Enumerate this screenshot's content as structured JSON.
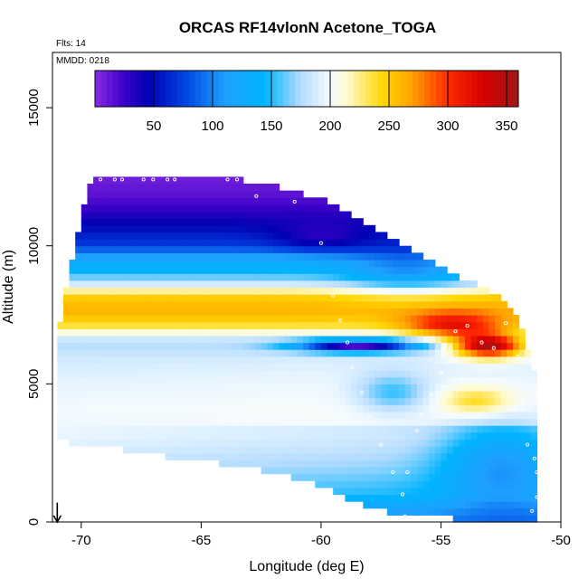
{
  "chart_data": {
    "type": "heatmap",
    "title": "ORCAS RF14vlonN Acetone_TOGA",
    "flights_text": "Flts: 14",
    "mmdd_text": "MMDD: 0218",
    "xlabel": "Longitude (deg E)",
    "ylabel": "Altitude (m)",
    "xlim": [
      -71.2,
      -50
    ],
    "ylim": [
      0,
      17000
    ],
    "xticks": [
      -70,
      -65,
      -60,
      -55,
      -50
    ],
    "yticks": [
      0,
      5000,
      10000,
      15000
    ],
    "colorbar": {
      "range": [
        0,
        360
      ],
      "ticks": [
        50,
        100,
        150,
        200,
        250,
        300,
        350
      ],
      "stops": [
        {
          "v": 0,
          "color": "#8a2be2"
        },
        {
          "v": 25,
          "color": "#3a00c8"
        },
        {
          "v": 45,
          "color": "#0000b4"
        },
        {
          "v": 75,
          "color": "#0040e0"
        },
        {
          "v": 110,
          "color": "#1e9fff"
        },
        {
          "v": 145,
          "color": "#00b4ff"
        },
        {
          "v": 175,
          "color": "#b4dcff"
        },
        {
          "v": 200,
          "color": "#f4fbff"
        },
        {
          "v": 215,
          "color": "#fffacd"
        },
        {
          "v": 245,
          "color": "#ffd700"
        },
        {
          "v": 270,
          "color": "#ffa000"
        },
        {
          "v": 300,
          "color": "#ff2a00"
        },
        {
          "v": 330,
          "color": "#d60000"
        },
        {
          "v": 360,
          "color": "#a01818"
        }
      ]
    },
    "field": {
      "x_step": 0.25,
      "z_step": 250,
      "boundary": [
        {
          "lon": -71.0,
          "zmin": 3000,
          "zmax": 6800
        },
        {
          "lon": -70.0,
          "zmin": 2800,
          "zmax": 11000
        },
        {
          "lon": -69.5,
          "zmin": 2800,
          "zmax": 12500
        },
        {
          "lon": -68.0,
          "zmin": 2600,
          "zmax": 12500
        },
        {
          "lon": -66.0,
          "zmin": 2300,
          "zmax": 12500
        },
        {
          "lon": -64.0,
          "zmin": 2100,
          "zmax": 12500
        },
        {
          "lon": -62.0,
          "zmin": 1800,
          "zmax": 12200
        },
        {
          "lon": -60.0,
          "zmin": 1300,
          "zmax": 11700
        },
        {
          "lon": -58.0,
          "zmin": 500,
          "zmax": 10800
        },
        {
          "lon": -56.0,
          "zmin": 200,
          "zmax": 9700
        },
        {
          "lon": -54.0,
          "zmin": 100,
          "zmax": 8800
        },
        {
          "lon": -52.5,
          "zmin": 100,
          "zmax": 8200
        },
        {
          "lon": -51.7,
          "zmin": 100,
          "zmax": 7200
        },
        {
          "lon": -51.0,
          "zmin": 0,
          "zmax": 5000
        }
      ],
      "layers": [
        {
          "z": 0,
          "v": 110
        },
        {
          "z": 500,
          "v": 130
        },
        {
          "z": 1000,
          "v": 160
        },
        {
          "z": 2000,
          "v": 180
        },
        {
          "z": 3000,
          "v": 195
        },
        {
          "z": 4000,
          "v": 200
        },
        {
          "z": 5000,
          "v": 195
        },
        {
          "z": 6000,
          "v": 185
        },
        {
          "z": 6500,
          "v": 175
        },
        {
          "z": 6700,
          "v": 190
        },
        {
          "z": 7200,
          "v": 245
        },
        {
          "z": 7700,
          "v": 262
        },
        {
          "z": 8200,
          "v": 248
        },
        {
          "z": 8600,
          "v": 190
        },
        {
          "z": 9000,
          "v": 150
        },
        {
          "z": 9500,
          "v": 125
        },
        {
          "z": 10000,
          "v": 75
        },
        {
          "z": 10800,
          "v": 45
        },
        {
          "z": 11300,
          "v": 28
        },
        {
          "z": 11800,
          "v": 15
        },
        {
          "z": 12500,
          "v": 8
        }
      ],
      "features": [
        {
          "lon": -58.5,
          "z": 6400,
          "dv": -160,
          "rx": 2.5,
          "rz": 220
        },
        {
          "lon": -53.0,
          "z": 6400,
          "dv": 170,
          "rx": 1.5,
          "rz": 420
        },
        {
          "lon": -54.5,
          "z": 7100,
          "dv": 80,
          "rx": 2.0,
          "rz": 500
        },
        {
          "lon": -53.5,
          "z": 4400,
          "dv": 45,
          "rx": 1.5,
          "rz": 500
        },
        {
          "lon": -56.5,
          "z": 9000,
          "dv": -40,
          "rx": 2.5,
          "rz": 900
        },
        {
          "lon": -52.5,
          "z": 2200,
          "dv": -60,
          "rx": 2.5,
          "rz": 1600
        },
        {
          "lon": -57.0,
          "z": 4700,
          "dv": -45,
          "rx": 1.5,
          "rz": 700
        },
        {
          "lon": -60.0,
          "z": 10300,
          "dv": -30,
          "rx": 2.0,
          "rz": 500
        }
      ]
    },
    "flight_points": [
      [
        -70.1,
        10900
      ],
      [
        -70.0,
        12400
      ],
      [
        -69.8,
        12400
      ],
      [
        -69.6,
        12400
      ],
      [
        -69.2,
        12400
      ],
      [
        -68.6,
        12400
      ],
      [
        -68.3,
        12400
      ],
      [
        -67.4,
        12400
      ],
      [
        -67.0,
        12400
      ],
      [
        -66.4,
        12400
      ],
      [
        -66.1,
        12400
      ],
      [
        -63.9,
        12400
      ],
      [
        -63.5,
        12400
      ],
      [
        -63.1,
        12400
      ],
      [
        -62.7,
        11800
      ],
      [
        -60.0,
        10100
      ],
      [
        -59.5,
        8200
      ],
      [
        -59.2,
        7300
      ],
      [
        -58.9,
        6500
      ],
      [
        -58.7,
        5600
      ],
      [
        -58.3,
        4700
      ],
      [
        -58.0,
        3800
      ],
      [
        -57.5,
        2800
      ],
      [
        -57.0,
        1800
      ],
      [
        -56.6,
        1000
      ],
      [
        -56.4,
        1800
      ],
      [
        -56.0,
        3300
      ],
      [
        -55.8,
        3900
      ],
      [
        -55.4,
        4600
      ],
      [
        -55.0,
        5400
      ],
      [
        -54.6,
        6300
      ],
      [
        -54.4,
        6900
      ],
      [
        -53.9,
        7100
      ],
      [
        -53.3,
        6500
      ],
      [
        -52.8,
        6300
      ],
      [
        -52.3,
        7200
      ],
      [
        -51.8,
        6000
      ],
      [
        -51.6,
        4400
      ],
      [
        -51.4,
        2800
      ],
      [
        -51.1,
        2300
      ],
      [
        -51.0,
        1800
      ],
      [
        -50.9,
        1200
      ],
      [
        -51.0,
        900
      ],
      [
        -51.2,
        400
      ],
      [
        -50.9,
        100
      ],
      [
        -57.2,
        150
      ],
      [
        -57.0,
        100
      ],
      [
        -56.5,
        200
      ],
      [
        -61.1,
        11600
      ]
    ],
    "arrow": {
      "lon": -71.0,
      "z_top": 700,
      "z_bottom": 0
    }
  }
}
